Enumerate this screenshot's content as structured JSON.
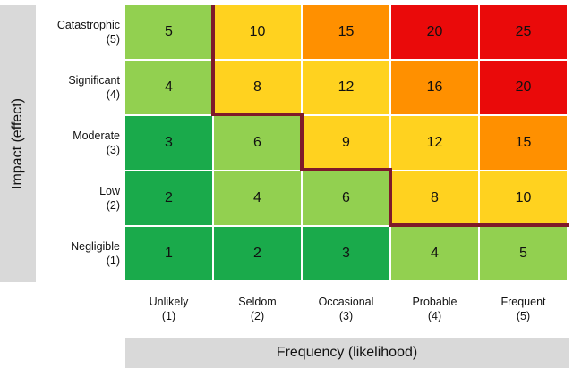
{
  "y_axis_title": "Impact (effect)",
  "x_axis_title": "Frequency (likelihood)",
  "rows": [
    {
      "name": "Catastrophic",
      "score": "(5)",
      "cells": [
        "5",
        "10",
        "15",
        "20",
        "25"
      ]
    },
    {
      "name": "Significant",
      "score": "(4)",
      "cells": [
        "4",
        "8",
        "12",
        "16",
        "20"
      ]
    },
    {
      "name": "Moderate",
      "score": "(3)",
      "cells": [
        "3",
        "6",
        "9",
        "12",
        "15"
      ]
    },
    {
      "name": "Low",
      "score": "(2)",
      "cells": [
        "2",
        "4",
        "6",
        "8",
        "10"
      ]
    },
    {
      "name": "Negligible",
      "score": "(1)",
      "cells": [
        "1",
        "2",
        "3",
        "4",
        "5"
      ]
    }
  ],
  "columns": [
    {
      "name": "Unlikely",
      "score": "(1)"
    },
    {
      "name": "Seldom",
      "score": "(2)"
    },
    {
      "name": "Occasional",
      "score": "(3)"
    },
    {
      "name": "Probable",
      "score": "(4)"
    },
    {
      "name": "Frequent",
      "score": "(5)"
    }
  ],
  "colors": {
    "dark_green": "#1aaa4b",
    "light_green": "#92d050",
    "yellow": "#ffd21f",
    "orange": "#ff9000",
    "red": "#ea0a0a",
    "threshold_line": "#7f1a2a",
    "axis_band": "#d9d9d9"
  }
}
